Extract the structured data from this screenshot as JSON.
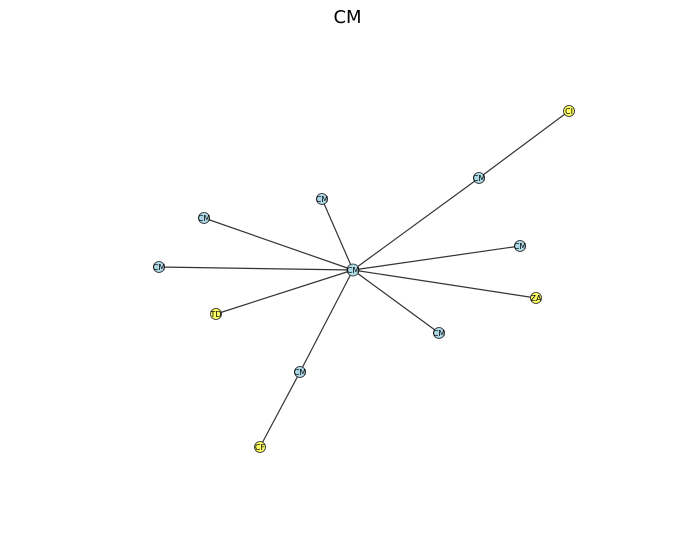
{
  "title": "CM",
  "colors": {
    "edge": "#333333",
    "node_blue": "#add8e6",
    "node_yellow": "#ffff66",
    "node_stroke": "#222222"
  },
  "nodes": [
    {
      "id": "hub",
      "label": "CM",
      "color": "blue"
    },
    {
      "id": "cm1",
      "label": "CM",
      "color": "blue"
    },
    {
      "id": "ci",
      "label": "CI",
      "color": "yellow"
    },
    {
      "id": "cm2",
      "label": "CM",
      "color": "blue"
    },
    {
      "id": "cm3",
      "label": "CM",
      "color": "blue"
    },
    {
      "id": "cm4",
      "label": "CM",
      "color": "blue"
    },
    {
      "id": "cm5",
      "label": "CM",
      "color": "blue"
    },
    {
      "id": "za",
      "label": "ZA",
      "color": "yellow"
    },
    {
      "id": "td",
      "label": "TD",
      "color": "yellow"
    },
    {
      "id": "cm6",
      "label": "CM",
      "color": "blue"
    },
    {
      "id": "cm7",
      "label": "CM",
      "color": "blue"
    },
    {
      "id": "cf",
      "label": "CF",
      "color": "yellow"
    }
  ],
  "edges": [
    [
      "hub",
      "cm1"
    ],
    [
      "cm1",
      "ci"
    ],
    [
      "hub",
      "cm2"
    ],
    [
      "hub",
      "cm3"
    ],
    [
      "hub",
      "cm4"
    ],
    [
      "hub",
      "cm5"
    ],
    [
      "hub",
      "za"
    ],
    [
      "hub",
      "td"
    ],
    [
      "hub",
      "cm6"
    ],
    [
      "hub",
      "cm7"
    ],
    [
      "cm7",
      "cf"
    ]
  ]
}
